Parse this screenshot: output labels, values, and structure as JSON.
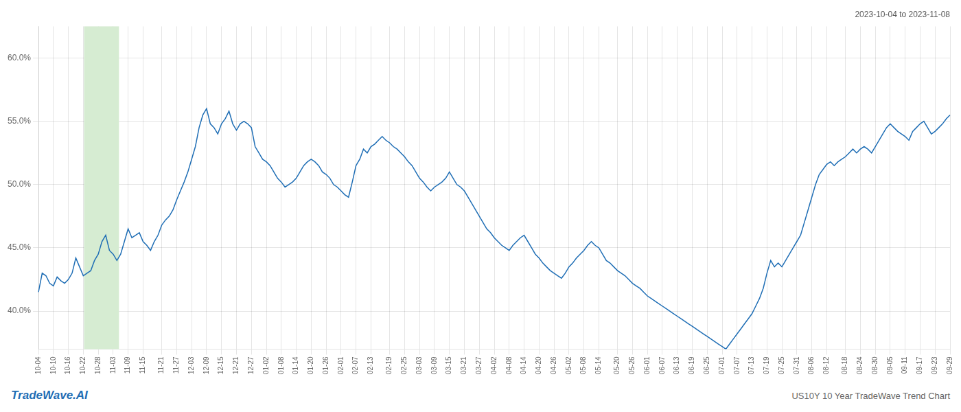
{
  "chart_data": {
    "type": "line",
    "title": "US10Y 10 Year TradeWave Trend Chart",
    "subtitle": "2023-10-04 to 2023-11-08",
    "annotations": [
      {
        "text": "TradeWave.AI"
      }
    ],
    "color": "#1f6eb5",
    "grid": true,
    "shade": {
      "start": 12.2,
      "end": 21.553333333333335,
      "color": "#d6ecd2"
    },
    "ylim": [
      0.37,
      0.625
    ],
    "yticks": [
      {
        "value": 0.4,
        "label": "40.0%"
      },
      {
        "value": 0.45,
        "label": "45.0%"
      },
      {
        "value": 0.5,
        "label": "50.0%"
      },
      {
        "value": 0.55,
        "label": "55.0%"
      },
      {
        "value": 0.6,
        "label": "60.0%"
      }
    ],
    "categories": [
      "10-04",
      null,
      null,
      null,
      "10-10",
      null,
      null,
      null,
      "10-16",
      null,
      null,
      null,
      "10-22",
      null,
      null,
      null,
      "10-28",
      null,
      null,
      null,
      "11-03",
      null,
      null,
      null,
      "11-09",
      null,
      null,
      null,
      "11-15",
      null,
      null,
      null,
      null,
      "11-21",
      null,
      null,
      null,
      "11-27",
      null,
      null,
      null,
      "12-03",
      null,
      null,
      null,
      "12-09",
      null,
      null,
      null,
      "12-15",
      null,
      null,
      null,
      "12-21",
      null,
      null,
      null,
      "12-27",
      null,
      null,
      null,
      "01-02",
      null,
      null,
      null,
      "01-08",
      null,
      null,
      null,
      "01-14",
      null,
      null,
      null,
      "01-20",
      null,
      null,
      null,
      "01-26",
      null,
      null,
      null,
      "02-01",
      null,
      null,
      null,
      "02-07",
      null,
      null,
      null,
      "02-13",
      null,
      null,
      null,
      null,
      "02-19",
      null,
      null,
      null,
      "02-25",
      null,
      null,
      null,
      "03-03",
      null,
      null,
      null,
      "03-09",
      null,
      null,
      null,
      "03-15",
      null,
      null,
      null,
      "03-21",
      null,
      null,
      null,
      "03-27",
      null,
      null,
      null,
      "04-02",
      null,
      null,
      null,
      "04-08",
      null,
      null,
      null,
      "04-14",
      null,
      null,
      null,
      "04-20",
      null,
      null,
      null,
      "04-26",
      null,
      null,
      null,
      "05-02",
      null,
      null,
      null,
      "05-08",
      null,
      null,
      null,
      "05-14",
      null,
      null,
      null,
      null,
      "05-20",
      null,
      null,
      null,
      "05-26",
      null,
      null,
      null,
      "06-01",
      null,
      null,
      null,
      "06-07",
      null,
      null,
      null,
      "06-13",
      null,
      null,
      null,
      "06-19",
      null,
      null,
      null,
      "06-25",
      null,
      null,
      null,
      "07-01",
      null,
      null,
      null,
      "07-07",
      null,
      null,
      null,
      "07-13",
      null,
      null,
      null,
      "07-19",
      null,
      null,
      null,
      "07-25",
      null,
      null,
      null,
      "07-31",
      null,
      null,
      null,
      "08-06",
      null,
      null,
      null,
      "08-12",
      null,
      null,
      null,
      null,
      "08-18",
      null,
      null,
      null,
      "08-24",
      null,
      null,
      null,
      "08-30",
      null,
      null,
      null,
      "09-05",
      null,
      null,
      null,
      "09-11",
      null,
      null,
      null,
      "09-17",
      null,
      null,
      null,
      "09-23",
      null,
      null,
      null,
      "09-29"
    ],
    "values": [
      0.415,
      0.43,
      0.428,
      0.422,
      0.42,
      0.427,
      0.424,
      0.422,
      0.425,
      0.43,
      0.442,
      0.435,
      0.428,
      0.43,
      0.432,
      0.44,
      0.445,
      0.455,
      0.46,
      0.448,
      0.445,
      0.44,
      0.445,
      0.455,
      0.465,
      0.458,
      0.46,
      0.462,
      0.455,
      0.452,
      0.448,
      0.455,
      0.46,
      0.468,
      0.472,
      0.475,
      0.48,
      0.488,
      0.495,
      0.502,
      0.51,
      0.52,
      0.53,
      0.545,
      0.555,
      0.56,
      0.548,
      0.545,
      0.54,
      0.548,
      0.552,
      0.558,
      0.548,
      0.543,
      0.548,
      0.55,
      0.548,
      0.545,
      0.53,
      0.525,
      0.52,
      0.518,
      0.515,
      0.51,
      0.505,
      0.502,
      0.498,
      0.5,
      0.502,
      0.505,
      0.51,
      0.515,
      0.518,
      0.52,
      0.518,
      0.515,
      0.51,
      0.508,
      0.505,
      0.5,
      0.498,
      0.495,
      0.492,
      0.49,
      0.502,
      0.515,
      0.52,
      0.528,
      0.525,
      0.53,
      0.532,
      0.535,
      0.538,
      0.535,
      0.533,
      0.53,
      0.528,
      0.525,
      0.522,
      0.518,
      0.515,
      0.51,
      0.505,
      0.502,
      0.498,
      0.495,
      0.498,
      0.5,
      0.502,
      0.505,
      0.51,
      0.505,
      0.5,
      0.498,
      0.495,
      0.49,
      0.485,
      0.48,
      0.475,
      0.47,
      0.465,
      0.462,
      0.458,
      0.455,
      0.452,
      0.45,
      0.448,
      0.452,
      0.455,
      0.458,
      0.46,
      0.455,
      0.45,
      0.445,
      0.442,
      0.438,
      0.435,
      0.432,
      0.43,
      0.428,
      0.426,
      0.43,
      0.435,
      0.438,
      0.442,
      0.445,
      0.448,
      0.452,
      0.455,
      0.452,
      0.45,
      0.445,
      0.44,
      0.438,
      0.435,
      0.432,
      0.43,
      0.428,
      0.425,
      0.422,
      0.42,
      0.418,
      0.415,
      0.412,
      0.41,
      0.408,
      0.406,
      0.404,
      0.402,
      0.4,
      0.398,
      0.396,
      0.394,
      0.392,
      0.39,
      0.388,
      0.386,
      0.384,
      0.382,
      0.38,
      0.378,
      0.376,
      0.374,
      0.372,
      0.37,
      0.374,
      0.378,
      0.382,
      0.386,
      0.39,
      0.394,
      0.398,
      0.404,
      0.41,
      0.418,
      0.43,
      0.44,
      0.435,
      0.438,
      0.435,
      0.44,
      0.445,
      0.45,
      0.455,
      0.46,
      0.47,
      0.48,
      0.49,
      0.5,
      0.508,
      0.512,
      0.516,
      0.518,
      0.515,
      0.518,
      0.52,
      0.522,
      0.525,
      0.528,
      0.525,
      0.528,
      0.53,
      0.528,
      0.525,
      0.53,
      0.535,
      0.54,
      0.545,
      0.548,
      0.545,
      0.542,
      0.54,
      0.538,
      0.535,
      0.542,
      0.545,
      0.548,
      0.55,
      0.545,
      0.54,
      0.542,
      0.545,
      0.548,
      0.552,
      0.555
    ]
  }
}
